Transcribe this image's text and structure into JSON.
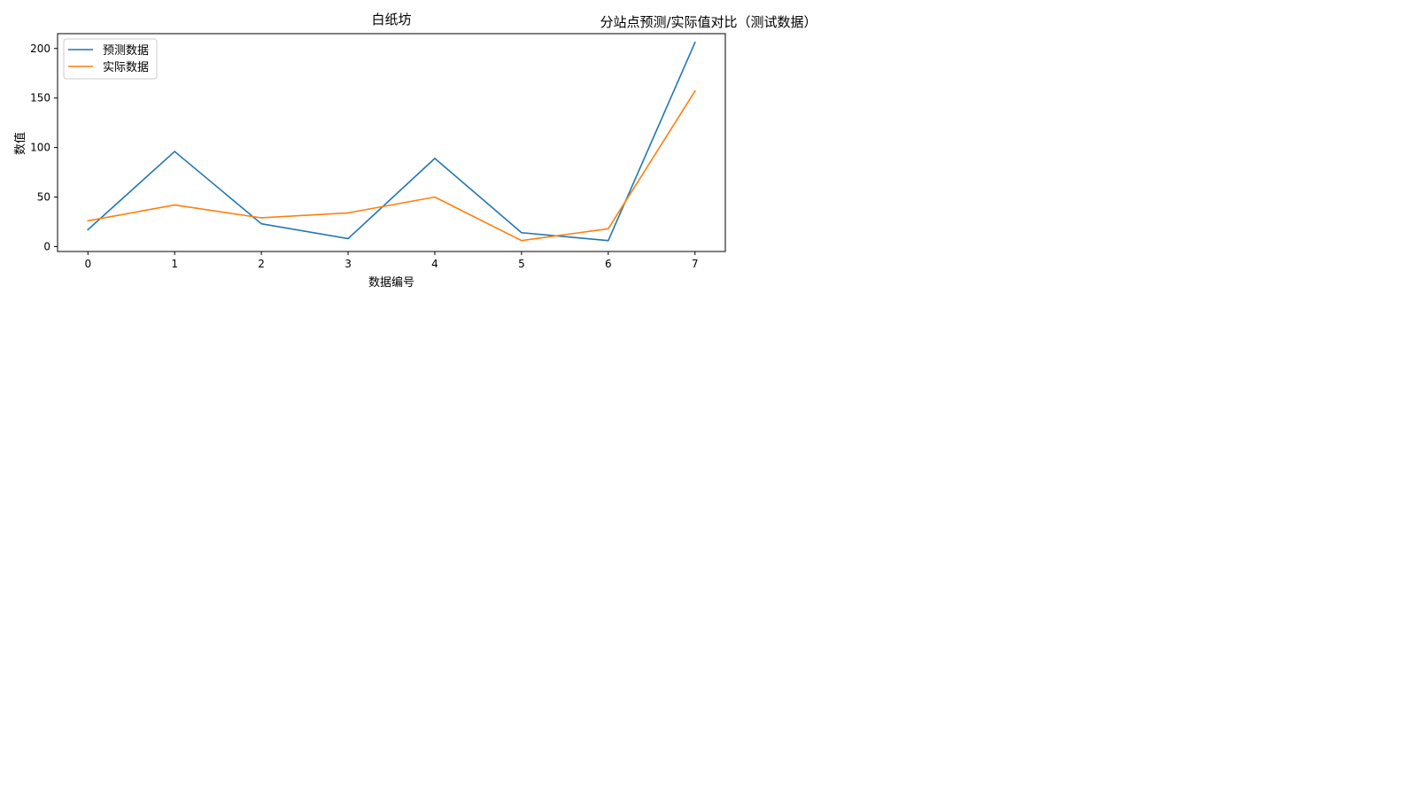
{
  "figure": {
    "suptitle": "分站点预测/实际值对比（测试数据）"
  },
  "chart_data": {
    "type": "line",
    "title": "白纸坊",
    "xlabel": "数据编号",
    "ylabel": "数值",
    "x": [
      0,
      1,
      2,
      3,
      4,
      5,
      6,
      7
    ],
    "xlim": [
      -0.35,
      7.35
    ],
    "ylim": [
      -5,
      215
    ],
    "xticks": [
      0,
      1,
      2,
      3,
      4,
      5,
      6,
      7
    ],
    "yticks": [
      0,
      50,
      100,
      150,
      200
    ],
    "grid": false,
    "legend_position": "upper-left",
    "series": [
      {
        "name": "预测数据",
        "color": "#1f77b4",
        "values": [
          17,
          96,
          23,
          8,
          89,
          14,
          6,
          206
        ]
      },
      {
        "name": "实际数据",
        "color": "#ff7f0e",
        "values": [
          26,
          42,
          29,
          34,
          50,
          6,
          18,
          157
        ]
      }
    ]
  }
}
